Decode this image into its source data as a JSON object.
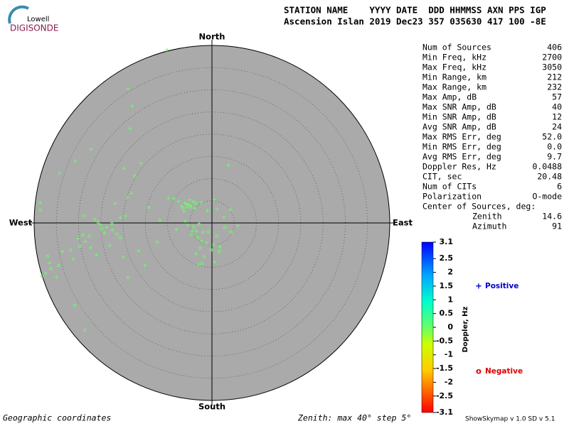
{
  "header": {
    "logo_top": "Lowell",
    "logo_bottom": "DIGISONDE",
    "line1": "STATION NAME    YYYY DATE  DDD HHMMSS AXN PPS IGP",
    "line2": "Ascension Islan 2019 Dec23 357 035630 417 100 -8E"
  },
  "stats": [
    [
      "Num of Sources",
      406
    ],
    [
      "Min Freq, kHz",
      2700
    ],
    [
      "Max Freq, kHz",
      3050
    ],
    [
      "Min Range, km",
      212
    ],
    [
      "Max Range, km",
      232
    ],
    [
      "Max Amp, dB",
      57
    ],
    [
      "Max SNR Amp, dB",
      40
    ],
    [
      "Min SNR Amp, dB",
      12
    ],
    [
      "Avg SNR Amp, dB",
      24
    ],
    [
      "Max RMS Err, deg",
      "52.0"
    ],
    [
      "Min RMS Err, deg",
      "0.0"
    ],
    [
      "Avg RMS Err, deg",
      9.7
    ],
    [
      "Doppler Res, Hz",
      0.0488
    ],
    [
      "CIT, sec",
      20.48
    ],
    [
      "Num of CITs",
      6
    ],
    [
      "Polarization",
      "O-mode"
    ]
  ],
  "center_title": "Center of Sources, deg:",
  "center": [
    [
      "Zenith",
      14.6
    ],
    [
      "Azimuth",
      91
    ]
  ],
  "footer": {
    "left": "Geographic coordinates",
    "middle": "Zenith: max 40°  step 5°",
    "right": "ShowSkymap v 1.0  SD v 5.1"
  },
  "chart_data": {
    "type": "skymap",
    "directions": {
      "north": "North",
      "south": "South",
      "west": "West",
      "east": "East"
    },
    "zenith_max": 40,
    "zenith_step": 5,
    "point_color": "#66ff66",
    "colorbar": {
      "label": "Doppler, Hz",
      "ticks": [
        3.1,
        2.5,
        2,
        1.5,
        1,
        0.5,
        0,
        -0.5,
        -1,
        -1.5,
        -2,
        -2.5,
        -3.1
      ]
    },
    "series": [
      {
        "name": "Positive",
        "color": "#0000cc",
        "marker": "+",
        "x": [
          -5.3,
          -4.8,
          -6.1,
          -5.6,
          -4.2,
          -6.8,
          -3.9,
          -5.0,
          -7.5,
          -8.6,
          -2.4,
          -1.0,
          0.5,
          1.2,
          -9.8,
          -6.3,
          -23.7,
          -25.1,
          -22.4,
          -26.4,
          -24.2,
          -28.5,
          -30.1,
          -27.3,
          -33.6,
          -31.2,
          -36.5,
          -37.4,
          -35.0,
          -20.6,
          -21.8,
          -19.0,
          -18.1,
          -17.4,
          -19.8,
          -34.3,
          -38.6,
          -30.7,
          -27.2,
          -18.9,
          -17.9,
          -10.1,
          -18.4,
          -16.0,
          -29.0,
          -26.0,
          -23.0,
          -20.0,
          -18.9,
          -16.5,
          -12.3,
          -11.7,
          -14.2,
          3.7,
          1.8,
          -3.0,
          0.6,
          -2.3,
          -8.0,
          -4.5,
          -3.6,
          -15.1,
          4.2,
          5.8,
          2.7
        ],
        "y": [
          4.2,
          3.9,
          4.5,
          3.5,
          4.8,
          3.8,
          3.3,
          5.2,
          4.9,
          5.5,
          4.6,
          2.8,
          5.2,
          3.1,
          5.6,
          2.6,
          -1.0,
          -0.4,
          -1.6,
          0.8,
          -2.2,
          -4.2,
          -3.5,
          -5.6,
          -6.4,
          -8.1,
          -9.0,
          -11.3,
          -12.2,
          1.2,
          4.4,
          5.8,
          6.7,
          10.6,
          12.3,
          11.2,
          4.6,
          13.9,
          16.6,
          30.2,
          26.3,
          39.0,
          21.3,
          13.4,
          -2.7,
          -7.2,
          -5.1,
          -7.7,
          -12.3,
          -6.3,
          -4.3,
          0.6,
          3.5,
          13.0,
          -5.4,
          -9.4,
          -8.8,
          -4.0,
          -1.5,
          -1.8,
          -7.0,
          -9.6,
          3.0,
          -0.6,
          1.3
        ]
      },
      {
        "name": "Negative",
        "color": "#dd0000",
        "marker": "o",
        "x": [
          -4.1,
          -3.5,
          -2.9,
          -4.6,
          -3.2,
          -2.0,
          -1.3,
          -0.2,
          1.1,
          -6.0,
          -5.3,
          -2.6,
          -1.8,
          0.4,
          -4.8,
          -5.7,
          -6.5,
          -3.7,
          4.3,
          2.9,
          -24.8,
          -27.6,
          -29.8,
          -31.8,
          -36.2,
          -37.0,
          -38.2,
          -22.5,
          -28.7,
          -28.6,
          -30.9,
          -20.6,
          -21.4,
          -25.6,
          -38.6,
          -34.5,
          -19.5,
          -2.2,
          -0.8,
          1.6
        ],
        "y": [
          -0.9,
          -1.8,
          -0.3,
          -2.6,
          -3.3,
          -2.1,
          -4.5,
          -6.1,
          -3.0,
          0.4,
          -0.5,
          -5.7,
          -7.6,
          -4.9,
          3.6,
          4.1,
          3.3,
          4.4,
          -2.1,
          -1.0,
          -1.3,
          -3.0,
          -5.3,
          -6.1,
          -10.3,
          -7.5,
          -12.0,
          -0.2,
          1.6,
          -24.2,
          -18.6,
          -3.3,
          -2.5,
          0.2,
          2.9,
          -9.6,
          1.5,
          -9.2,
          -2.0,
          -6.4
        ]
      }
    ]
  }
}
